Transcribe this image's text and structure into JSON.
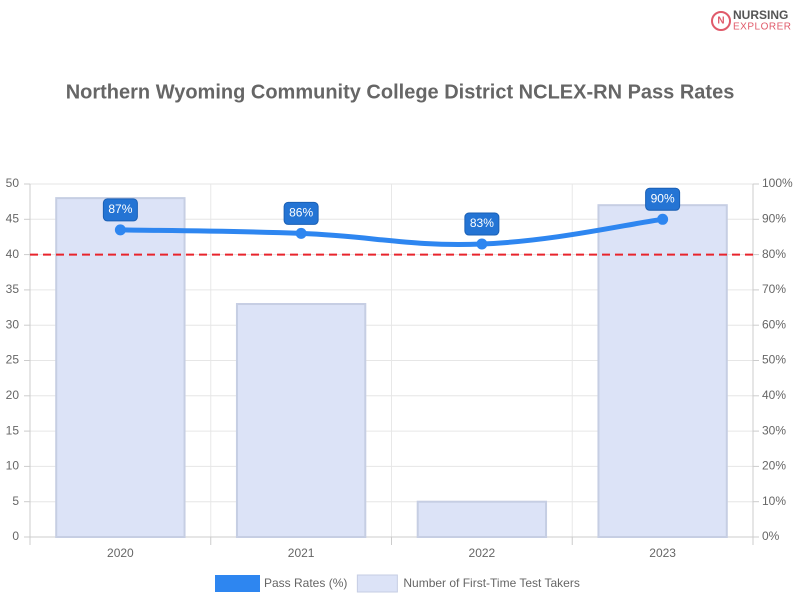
{
  "logo": {
    "line1": "NURSING",
    "line2": "EXPLORER"
  },
  "chart_data": {
    "type": "combo",
    "title": "Northern Wyoming Community College District NCLEX-RN Pass Rates",
    "categories": [
      "2020",
      "2021",
      "2022",
      "2023"
    ],
    "series": [
      {
        "name": "Pass Rates (%)",
        "type": "line",
        "axis": "y2",
        "color": "#2e86f0",
        "values": [
          87,
          86,
          83,
          90
        ],
        "value_labels": [
          "87%",
          "86%",
          "83%",
          "90%"
        ]
      },
      {
        "name": "Number of First-Time Test Takers",
        "type": "bar",
        "color": "#dce3f7",
        "border": "#c6cee3",
        "values": [
          48,
          33,
          5,
          47
        ]
      }
    ],
    "ylim": [
      0,
      50
    ],
    "yticks": [
      0,
      5,
      10,
      15,
      20,
      25,
      30,
      35,
      40,
      45,
      50
    ],
    "y2lim": [
      0,
      100
    ],
    "y2ticks": [
      {
        "value": 0,
        "label": "0%"
      },
      {
        "value": 10,
        "label": "10%"
      },
      {
        "value": 20,
        "label": "20%"
      },
      {
        "value": 30,
        "label": "30%"
      },
      {
        "value": 40,
        "label": "40%"
      },
      {
        "value": 50,
        "label": "50%"
      },
      {
        "value": 60,
        "label": "60%"
      },
      {
        "value": 70,
        "label": "70%"
      },
      {
        "value": 80,
        "label": "80%"
      },
      {
        "value": 90,
        "label": "90%"
      },
      {
        "value": 100,
        "label": "100%"
      }
    ],
    "reference_line": {
      "value": 80,
      "axis": "y2",
      "color": "#e8242c"
    },
    "grid": true,
    "legend": "bottom"
  }
}
